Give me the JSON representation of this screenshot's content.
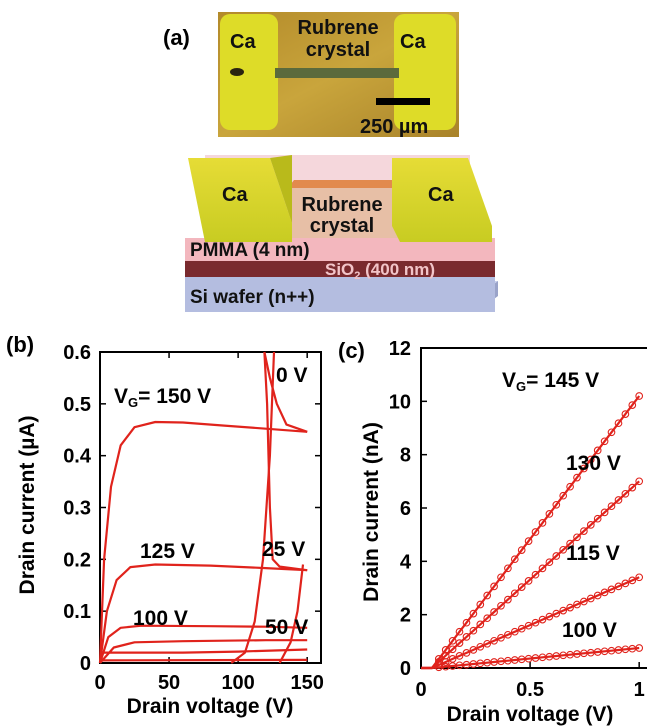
{
  "panel_a": {
    "label": "(a)",
    "photo": {
      "left_electrode": "Ca",
      "right_electrode": "Ca",
      "crystal_line1": "Rubrene",
      "crystal_line2": "crystal",
      "scale_bar_text": "250 µm"
    },
    "schematic": {
      "left_electrode": "Ca",
      "right_electrode": "Ca",
      "crystal_line1": "Rubrene",
      "crystal_line2": "crystal",
      "pmma": "PMMA (4 nm)",
      "sio2_main": "SiO",
      "sio2_sub": "2",
      "sio2_rest": " (400 nm)",
      "si": "Si wafer (n++)"
    },
    "colors": {
      "photo_bg": "#c8a238",
      "ca_yellow": "#dedc28",
      "rubrene": "#e7bfa6",
      "pmma": "#f3b7be",
      "sio2": "#7a2a2e",
      "si": "#b4bde0"
    }
  },
  "chart_data": [
    {
      "panel": "(b)",
      "type": "line",
      "xlabel": "Drain voltage (V)",
      "ylabel": "Drain current (µA)",
      "xlim": [
        0,
        160
      ],
      "ylim": [
        0,
        0.6
      ],
      "xticks": [
        "0",
        "50",
        "100",
        "150"
      ],
      "yticks": [
        "0",
        "0.1",
        "0.2",
        "0.3",
        "0.4",
        "0.5",
        "0.6"
      ],
      "color": "#e0231c",
      "labels": {
        "vg_main": "V",
        "vg_sub": "G",
        "vg_rest": "= 150 V",
        "v125": "125 V",
        "v100": "100 V",
        "v0": "0 V",
        "v25": "25 V",
        "v50": "50 V"
      },
      "series": [
        {
          "values": [
            [
              0,
              0
            ],
            [
              3,
              0.2
            ],
            [
              8,
              0.34
            ],
            [
              15,
              0.42
            ],
            [
              25,
              0.455
            ],
            [
              40,
              0.465
            ],
            [
              60,
              0.464
            ],
            [
              90,
              0.458
            ],
            [
              120,
              0.452
            ],
            [
              150,
              0.446
            ]
          ]
        },
        {
          "values": [
            [
              150,
              0.446
            ],
            [
              135,
              0.46
            ],
            [
              128,
              0.5
            ],
            [
              123,
              0.55
            ],
            [
              119,
              0.6
            ]
          ]
        },
        {
          "values": [
            [
              0,
              0
            ],
            [
              5,
              0.1
            ],
            [
              12,
              0.16
            ],
            [
              22,
              0.185
            ],
            [
              40,
              0.19
            ],
            [
              80,
              0.188
            ],
            [
              120,
              0.183
            ],
            [
              150,
              0.179
            ]
          ]
        },
        {
          "values": [
            [
              150,
              0.179
            ],
            [
              130,
              0.186
            ],
            [
              125,
              0.2
            ],
            [
              123,
              0.3
            ],
            [
              121,
              0.5
            ],
            [
              119,
              0.6
            ]
          ]
        },
        {
          "values": [
            [
              0,
              0
            ],
            [
              6,
              0.05
            ],
            [
              15,
              0.068
            ],
            [
              30,
              0.072
            ],
            [
              80,
              0.071
            ],
            [
              120,
              0.07
            ],
            [
              150,
              0.068
            ]
          ]
        },
        {
          "values": [
            [
              0,
              0
            ],
            [
              10,
              0.03
            ],
            [
              25,
              0.04
            ],
            [
              60,
              0.042
            ],
            [
              120,
              0.044
            ],
            [
              150,
              0.044
            ]
          ]
        },
        {
          "values": [
            [
              0,
              0.02
            ],
            [
              60,
              0.02
            ],
            [
              100,
              0.022
            ],
            [
              150,
              0.026
            ]
          ]
        },
        {
          "values": [
            [
              95,
              0
            ],
            [
              105,
              0.02
            ],
            [
              112,
              0.08
            ],
            [
              118,
              0.2
            ],
            [
              123,
              0.4
            ],
            [
              126,
              0.6
            ]
          ]
        },
        {
          "values": [
            [
              130,
              0
            ],
            [
              138,
              0.04
            ],
            [
              143,
              0.1
            ],
            [
              147,
              0.19
            ]
          ]
        },
        {
          "values": [
            [
              0,
              0.005
            ],
            [
              150,
              0.006
            ]
          ]
        }
      ]
    },
    {
      "panel": "(c)",
      "type": "line",
      "xlabel": "Drain voltage (V)",
      "ylabel": "Drain current (nA)",
      "xlim": [
        0,
        1.1
      ],
      "ylim": [
        0,
        12
      ],
      "xticks": [
        "0",
        "0.5",
        "1"
      ],
      "yticks": [
        "0",
        "2",
        "4",
        "6",
        "8",
        "10",
        "12"
      ],
      "color": "#e0231c",
      "labels": {
        "vg_main": "V",
        "vg_sub": "G",
        "vg_rest": "= 145 V",
        "v130": "130 V",
        "v115": "115 V",
        "v100": "100 V"
      },
      "series": [
        {
          "x0": 0.05,
          "end": [
            1.0,
            10.2
          ]
        },
        {
          "x0": 0.05,
          "end": [
            1.0,
            7.0
          ]
        },
        {
          "x0": 0.05,
          "end": [
            1.0,
            3.4
          ]
        },
        {
          "x0": 0.05,
          "end": [
            1.0,
            0.75
          ]
        }
      ]
    }
  ]
}
